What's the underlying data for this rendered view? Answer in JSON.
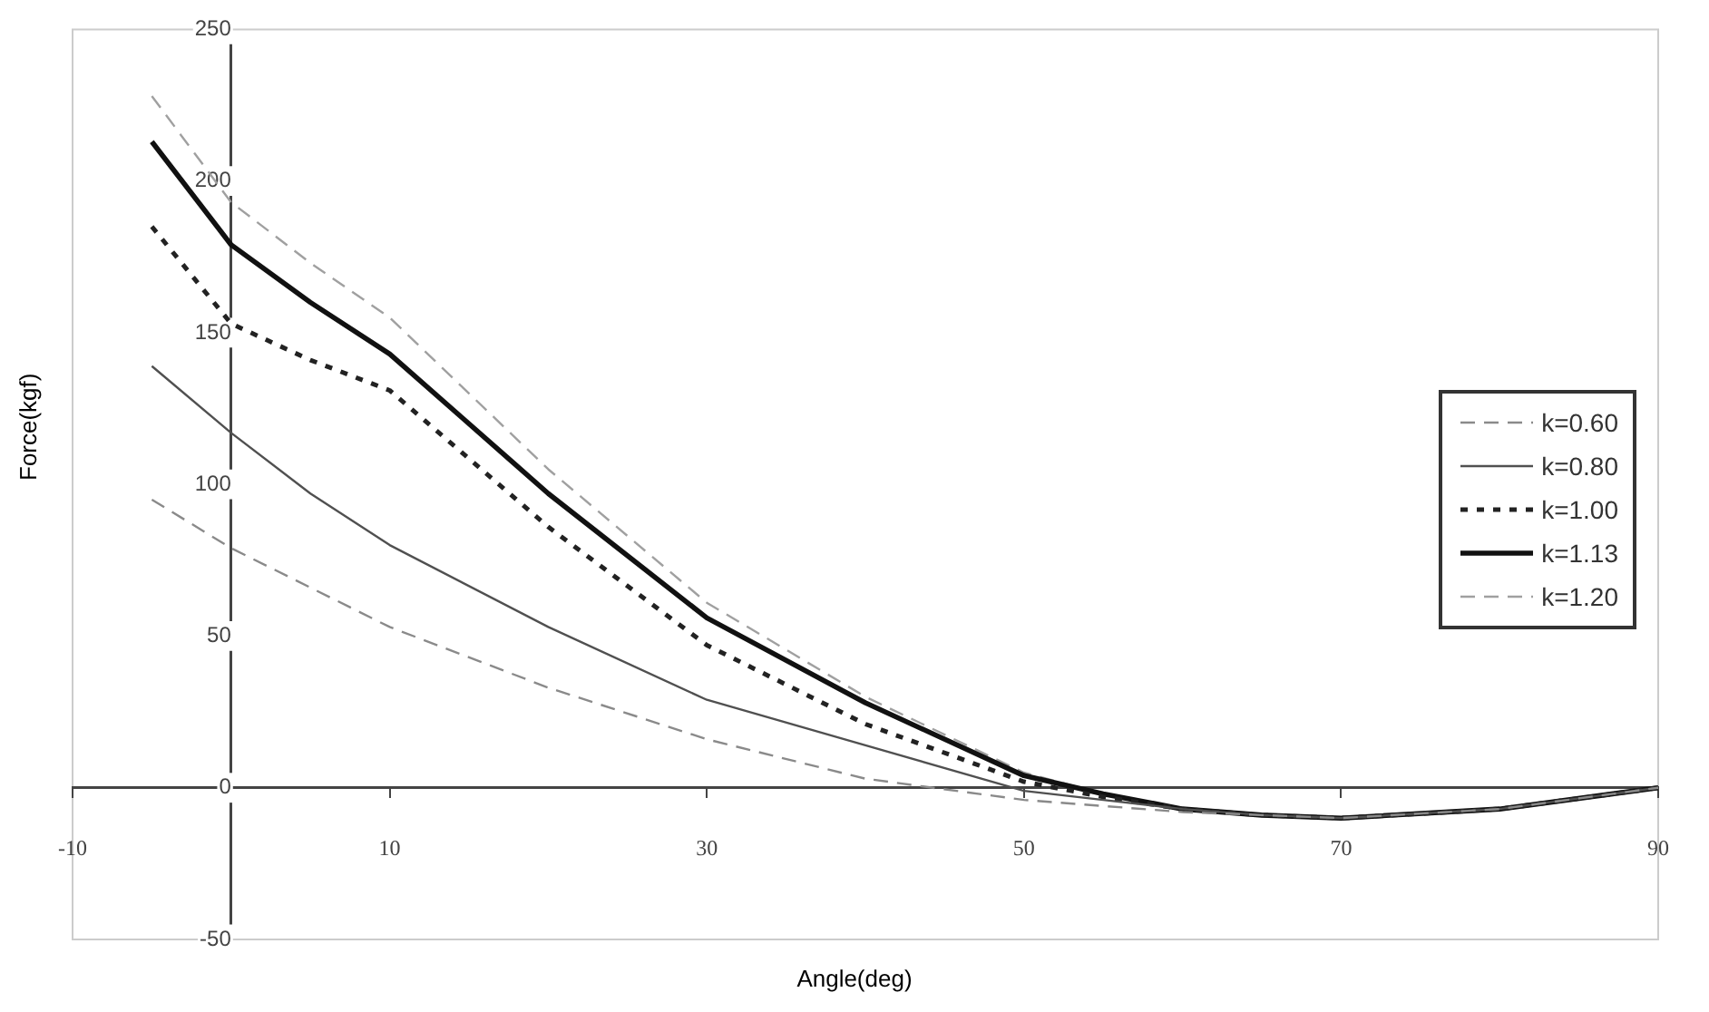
{
  "chart_data": {
    "type": "line",
    "xlabel": "Angle(deg)",
    "ylabel": "Force(kgf)",
    "x": [
      -5,
      0,
      5,
      10,
      20,
      30,
      40,
      50,
      55,
      60,
      65,
      70,
      80,
      90
    ],
    "series": [
      {
        "name": "k=0.60",
        "color": "#8a8a8a",
        "line_style": "dashed",
        "values": [
          95,
          79,
          66,
          53,
          33,
          16,
          3,
          -4,
          -6,
          -8,
          -9,
          -10,
          -7,
          0
        ]
      },
      {
        "name": "k=0.80",
        "color": "#505050",
        "line_style": "solid",
        "values": [
          139,
          117,
          97,
          80,
          53,
          29,
          14,
          -1,
          -4,
          -7,
          -9,
          -10,
          -7,
          0
        ]
      },
      {
        "name": "k=1.00",
        "color": "#222222",
        "line_style": "dotted",
        "values": [
          185,
          153,
          141,
          131,
          86,
          47,
          21,
          2,
          -3,
          -7,
          -9,
          -10,
          -7,
          0
        ]
      },
      {
        "name": "k=1.13",
        "color": "#111111",
        "line_style": "solid",
        "values": [
          213,
          179,
          160,
          143,
          97,
          56,
          28,
          4,
          -2,
          -7,
          -9,
          -10,
          -7,
          0
        ]
      },
      {
        "name": "k=1.20",
        "color": "#a0a0a0",
        "line_style": "dashed",
        "values": [
          228,
          193,
          173,
          155,
          105,
          61,
          30,
          5,
          -2,
          -7,
          -9,
          -10,
          -7,
          0
        ]
      }
    ],
    "xlim": [
      -10,
      90
    ],
    "xticks": [
      -10,
      10,
      30,
      50,
      70,
      90
    ],
    "ylim": [
      -50,
      250
    ],
    "yticks": [
      -50,
      0,
      50,
      100,
      150,
      200,
      250
    ],
    "grid": false,
    "legend": "right",
    "marker": "none"
  }
}
